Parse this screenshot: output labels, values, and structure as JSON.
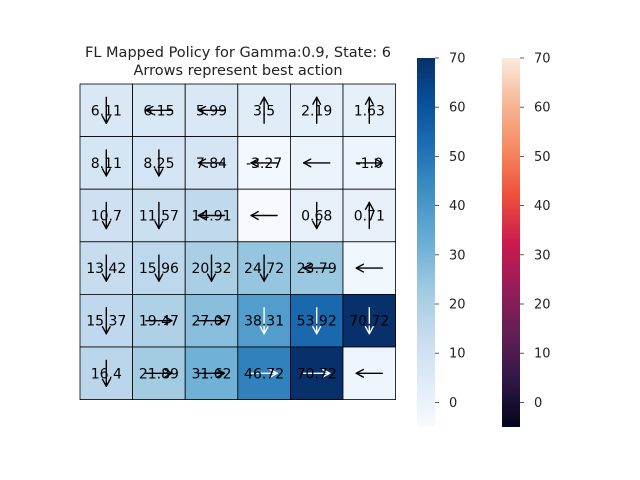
{
  "chart_data": {
    "type": "heatmap",
    "title": "FL Mapped Policy for Gamma:0.9, State: 6",
    "subtitle": "Arrows represent best action",
    "rows": 6,
    "cols": 6,
    "values": [
      [
        6.11,
        6.15,
        5.99,
        3.5,
        2.19,
        1.63
      ],
      [
        8.11,
        8.25,
        7.84,
        -3.27,
        -0.5,
        -1.0
      ],
      [
        10.7,
        11.57,
        14.91,
        -4.5,
        0.68,
        0.71
      ],
      [
        13.42,
        15.96,
        20.32,
        24.72,
        23.79,
        -2.0
      ],
      [
        15.37,
        19.47,
        27.07,
        38.31,
        53.92,
        70.72
      ],
      [
        16.4,
        21.89,
        31.62,
        46.72,
        70.72,
        -1.5
      ]
    ],
    "labels": [
      [
        "6.11",
        "6.15",
        "5.99",
        "3.5",
        "2.19",
        "1.63"
      ],
      [
        "8.11",
        "8.25",
        "7.84",
        "-3.27",
        "",
        "-1.0"
      ],
      [
        "10.7",
        "11.57",
        "14.91",
        "",
        "0.68",
        "0.71"
      ],
      [
        "13.42",
        "15.96",
        "20.32",
        "24.72",
        "23.79",
        ""
      ],
      [
        "15.37",
        "19.47",
        "27.07",
        "38.31",
        "53.92",
        "70.72"
      ],
      [
        "16.4",
        "21.89",
        "31.62",
        "46.72",
        "70.72",
        ""
      ]
    ],
    "arrows": [
      [
        "down",
        "left",
        "left",
        "up",
        "up",
        "up"
      ],
      [
        "down",
        "down",
        "left",
        "left",
        "left",
        "right"
      ],
      [
        "down",
        "down",
        "left",
        "left",
        "down",
        "up"
      ],
      [
        "down",
        "down",
        "down",
        "down",
        "left",
        "left"
      ],
      [
        "down",
        "right",
        "right",
        "down",
        "down",
        "down"
      ],
      [
        "down",
        "right",
        "right",
        "right",
        "right",
        "left"
      ]
    ],
    "colorbars": [
      {
        "colormap": "Blues",
        "range": [
          -5,
          70
        ],
        "ticks": [
          0,
          10,
          20,
          30,
          40,
          50,
          60,
          70
        ]
      },
      {
        "colormap": "rocket",
        "range": [
          -5,
          70
        ],
        "ticks": [
          0,
          10,
          20,
          30,
          40,
          50,
          60,
          70
        ]
      }
    ],
    "grid": true
  }
}
